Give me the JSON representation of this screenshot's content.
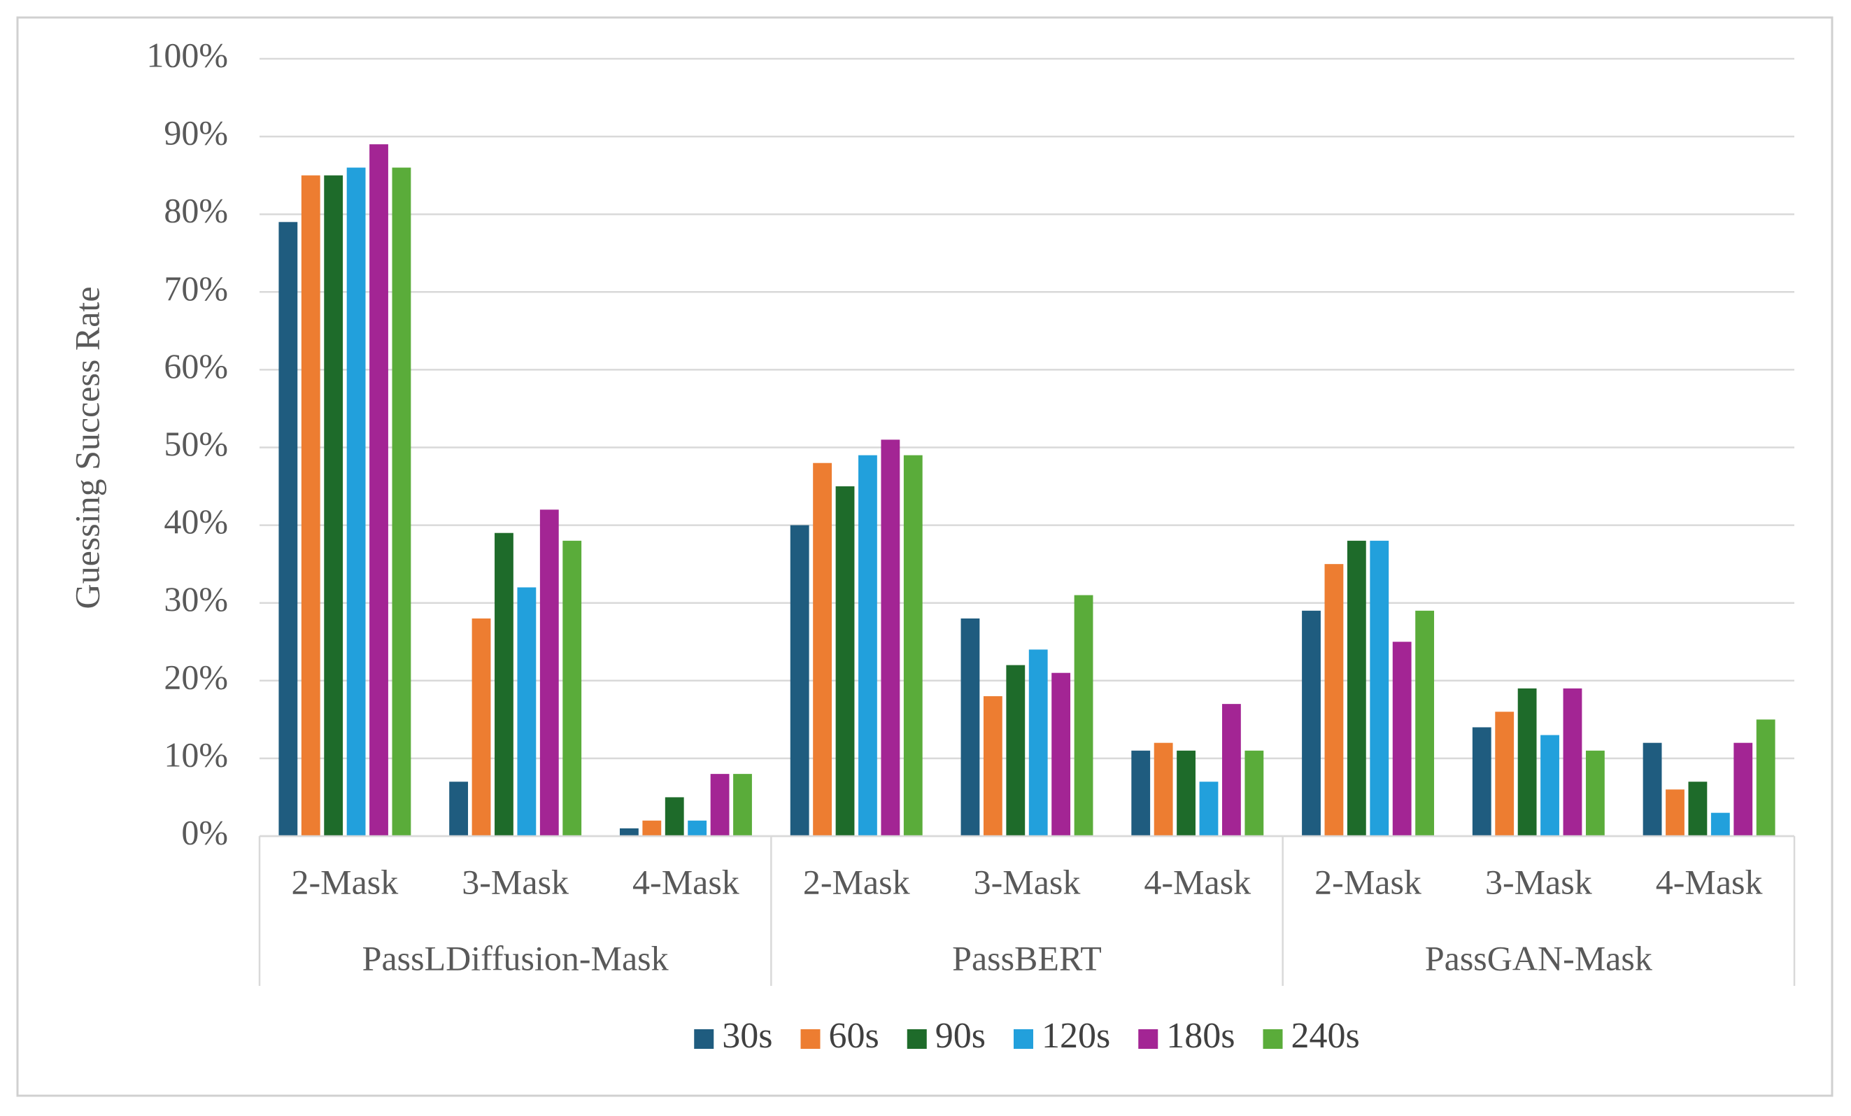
{
  "chart_data": {
    "type": "bar",
    "y_label": "Guessing Success Rate",
    "groups": [
      {
        "name": "PassLDiffusion-Mask",
        "categories": [
          "2-Mask",
          "3-Mask",
          "4-Mask"
        ]
      },
      {
        "name": "PassBERT",
        "categories": [
          "2-Mask",
          "3-Mask",
          "4-Mask"
        ]
      },
      {
        "name": "PassGAN-Mask",
        "categories": [
          "2-Mask",
          "3-Mask",
          "4-Mask"
        ]
      }
    ],
    "series": [
      {
        "name": "30s",
        "color": "#1f5c7f",
        "values": [
          79,
          7,
          1,
          40,
          28,
          11,
          29,
          14,
          12
        ]
      },
      {
        "name": "60s",
        "color": "#ed7d31",
        "values": [
          85,
          28,
          2,
          48,
          18,
          12,
          35,
          16,
          6
        ]
      },
      {
        "name": "90s",
        "color": "#1e6b2a",
        "values": [
          85,
          39,
          5,
          45,
          22,
          11,
          38,
          19,
          7
        ]
      },
      {
        "name": "120s",
        "color": "#22a0dc",
        "values": [
          86,
          32,
          2,
          49,
          24,
          7,
          38,
          13,
          3
        ]
      },
      {
        "name": "180s",
        "color": "#a32594",
        "values": [
          89,
          42,
          8,
          51,
          21,
          17,
          25,
          19,
          12
        ]
      },
      {
        "name": "240s",
        "color": "#5aac3a",
        "values": [
          86,
          38,
          8,
          49,
          31,
          11,
          29,
          11,
          15
        ]
      }
    ],
    "ylim": [
      0,
      100
    ],
    "yticks": [
      {
        "value": 0,
        "label": "0%"
      },
      {
        "value": 10,
        "label": "10%"
      },
      {
        "value": 20,
        "label": "20%"
      },
      {
        "value": 30,
        "label": "30%"
      },
      {
        "value": 40,
        "label": "40%"
      },
      {
        "value": 50,
        "label": "50%"
      },
      {
        "value": 60,
        "label": "60%"
      },
      {
        "value": 70,
        "label": "70%"
      },
      {
        "value": 80,
        "label": "80%"
      },
      {
        "value": 90,
        "label": "90%"
      },
      {
        "value": 100,
        "label": "100%"
      }
    ],
    "grid": true,
    "legend": "bottom"
  }
}
